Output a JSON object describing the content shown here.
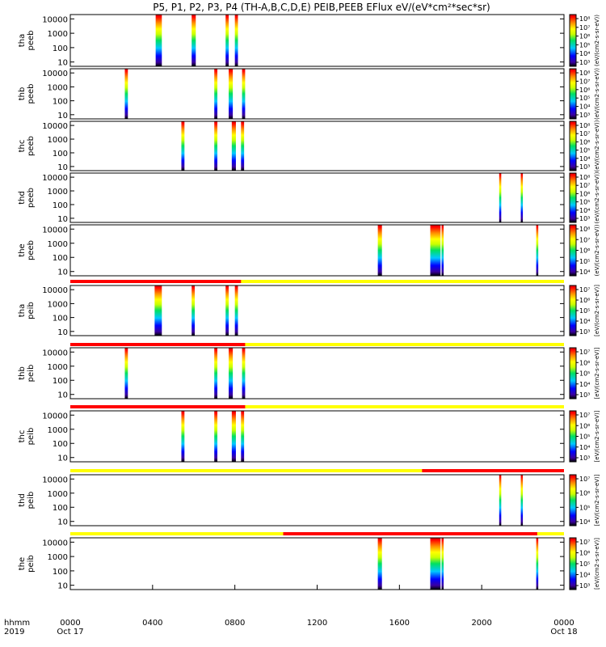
{
  "title": "P5, P1, P2, P3, P4 (TH-A,B,C,D,E) PEIB,PEEB EFlux eV/(eV*cm²*sec*sr)",
  "x_axis": {
    "row_label": "hhmm",
    "year_label": "2019",
    "ticks": [
      "0000",
      "0400",
      "0800",
      "1200",
      "1600",
      "2000",
      "0000"
    ],
    "dates": [
      "Oct 17",
      "Oct 18"
    ]
  },
  "colorbar_unit_label_peeb": "(eV/(cm2-s-sr-eV))",
  "colorbar_unit_label_peib": "[eV/(cm2-s-sr-eV)]",
  "colors": {
    "flag_red": "#ff0000",
    "flag_yellow": "#ffff00",
    "frame": "#000000"
  },
  "chart_data": {
    "type": "heatmap",
    "x_range_hours": [
      0,
      24
    ],
    "y_scale": "log",
    "y_ticks": [
      "10",
      "100",
      "1000",
      "10000"
    ],
    "colormap": "rainbow",
    "panels": [
      {
        "label": [
          "tha",
          "peeb"
        ],
        "cbar_ticks": [
          "10³",
          "10⁴",
          "10⁵",
          "10⁶",
          "10⁷",
          "10⁸"
        ],
        "bands": [
          [
            4.15,
            4.45
          ],
          [
            5.9,
            6.1
          ],
          [
            7.55,
            7.7
          ],
          [
            8.0,
            8.15
          ]
        ]
      },
      {
        "label": [
          "thb",
          "peeb"
        ],
        "cbar_ticks": [
          "10³",
          "10⁴",
          "10⁵",
          "10⁶",
          "10⁷",
          "10⁸"
        ],
        "bands": [
          [
            2.65,
            2.8
          ],
          [
            7.0,
            7.15
          ],
          [
            7.7,
            7.9
          ],
          [
            8.35,
            8.5
          ]
        ]
      },
      {
        "label": [
          "thc",
          "peeb"
        ],
        "cbar_ticks": [
          "10³",
          "10⁴",
          "10⁵",
          "10⁶",
          "10⁷",
          "10⁸"
        ],
        "bands": [
          [
            5.4,
            5.55
          ],
          [
            7.0,
            7.15
          ],
          [
            7.85,
            8.05
          ],
          [
            8.3,
            8.45
          ]
        ]
      },
      {
        "label": [
          "thd",
          "peeb"
        ],
        "cbar_ticks": [
          "10³",
          "10⁴",
          "10⁵",
          "10⁶",
          "10⁷",
          "10⁸"
        ],
        "bands": [
          [
            20.85,
            20.95
          ],
          [
            21.9,
            22.0
          ]
        ]
      },
      {
        "label": [
          "the",
          "peeb"
        ],
        "cbar_ticks": [
          "10⁴",
          "10⁵",
          "10⁶",
          "10⁷",
          "10⁸"
        ],
        "bands": [
          [
            14.95,
            15.15
          ],
          [
            17.5,
            18.0
          ],
          [
            18.05,
            18.15
          ],
          [
            22.65,
            22.75
          ]
        ]
      },
      {
        "label": [
          "tha",
          "peib"
        ],
        "cbar_ticks": [
          "10³",
          "10⁴",
          "10⁵",
          "10⁶",
          "10⁷"
        ],
        "flag": {
          "red_until_hour": 8.3,
          "red_first": true
        },
        "bands": [
          [
            4.1,
            4.45
          ],
          [
            5.9,
            6.05
          ],
          [
            7.55,
            7.7
          ],
          [
            8.0,
            8.15
          ]
        ]
      },
      {
        "label": [
          "thb",
          "peib"
        ],
        "cbar_ticks": [
          "10³",
          "10⁴",
          "10⁵",
          "10⁶",
          "10⁷"
        ],
        "flag": {
          "red_until_hour": 8.5,
          "red_first": true
        },
        "bands": [
          [
            2.65,
            2.8
          ],
          [
            7.0,
            7.15
          ],
          [
            7.7,
            7.9
          ],
          [
            8.35,
            8.5
          ]
        ]
      },
      {
        "label": [
          "thc",
          "peib"
        ],
        "cbar_ticks": [
          "10³",
          "10⁴",
          "10⁵",
          "10⁶",
          "10⁷"
        ],
        "flag": {
          "red_until_hour": 8.5,
          "red_first": true
        },
        "bands": [
          [
            5.4,
            5.55
          ],
          [
            7.0,
            7.15
          ],
          [
            7.85,
            8.05
          ],
          [
            8.3,
            8.45
          ]
        ]
      },
      {
        "label": [
          "thd",
          "peib"
        ],
        "cbar_ticks": [
          "10⁴",
          "10⁵",
          "10⁶",
          "10⁷"
        ],
        "flag": {
          "red_from_hour": 17.1,
          "red_first": false
        },
        "bands": [
          [
            20.85,
            20.95
          ],
          [
            21.9,
            22.0
          ]
        ]
      },
      {
        "label": [
          "the",
          "peib"
        ],
        "cbar_ticks": [
          "10³",
          "10⁴",
          "10⁵",
          "10⁶",
          "10⁷"
        ],
        "flag": {
          "red_from_hour": 10.35,
          "red_until_hour": 22.7,
          "red_first": false
        },
        "bands": [
          [
            14.95,
            15.15
          ],
          [
            17.5,
            18.0
          ],
          [
            18.05,
            18.15
          ],
          [
            22.65,
            22.75
          ]
        ]
      }
    ]
  }
}
